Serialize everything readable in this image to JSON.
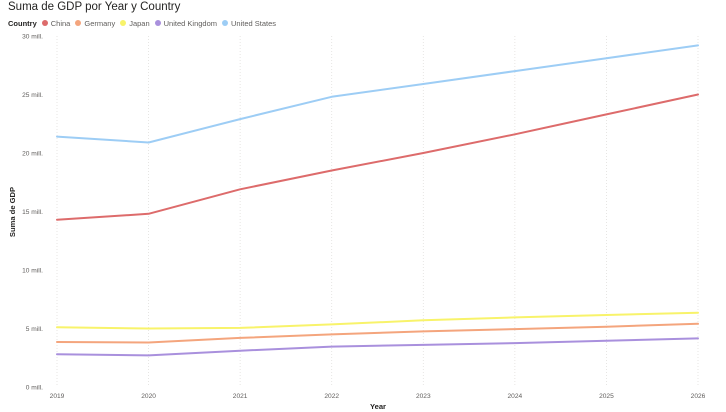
{
  "chart_data": {
    "type": "line",
    "title": "Suma de GDP por Year y Country",
    "xlabel": "Year",
    "ylabel": "Suma de GDP",
    "legend_title": "Country",
    "legend_position": "top-left",
    "grid": "vertical dotted",
    "x": [
      2019,
      2020,
      2021,
      2022,
      2023,
      2024,
      2025,
      2026
    ],
    "x_tick_labels": [
      "2019",
      "2020",
      "2021",
      "2022",
      "2023",
      "2024",
      "2025",
      "2026"
    ],
    "ylim": [
      0,
      30000000
    ],
    "y_ticks": [
      0,
      5000000,
      10000000,
      15000000,
      20000000,
      25000000,
      30000000
    ],
    "y_tick_labels": [
      "0 mill.",
      "5 mill.",
      "10 mill.",
      "15 mill.",
      "20 mill.",
      "25 mill.",
      "30 mill."
    ],
    "series": [
      {
        "name": "China",
        "color": "#dd6b6b",
        "values": [
          14300000,
          14800000,
          16900000,
          18500000,
          20000000,
          21600000,
          23300000,
          25000000
        ]
      },
      {
        "name": "Germany",
        "color": "#f4a57d",
        "values": [
          3850000,
          3800000,
          4200000,
          4500000,
          4750000,
          4950000,
          5150000,
          5400000
        ]
      },
      {
        "name": "Japan",
        "color": "#f8f36a",
        "values": [
          5100000,
          5000000,
          5050000,
          5350000,
          5700000,
          5950000,
          6150000,
          6350000
        ]
      },
      {
        "name": "United Kingdom",
        "color": "#a990dd",
        "values": [
          2800000,
          2700000,
          3100000,
          3450000,
          3600000,
          3750000,
          3950000,
          4150000
        ]
      },
      {
        "name": "United States",
        "color": "#9dcdf5",
        "values": [
          21400000,
          20900000,
          22900000,
          24800000,
          25900000,
          27000000,
          28100000,
          29200000
        ]
      }
    ]
  }
}
